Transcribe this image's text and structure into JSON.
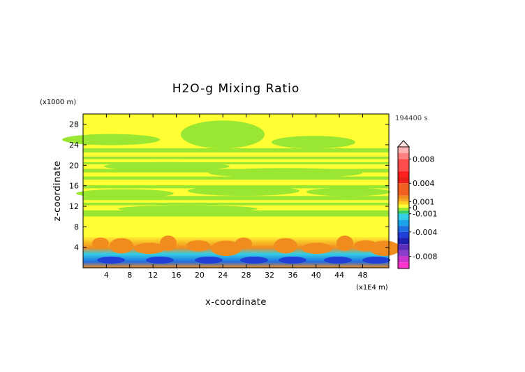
{
  "chart_data": {
    "type": "heatmap",
    "title": "H2O-g Mixing Ratio",
    "xlabel": "x-coordinate",
    "ylabel": "z-coordinate",
    "x_unit": "(x1E4 m)",
    "y_unit": "(x1000 m)",
    "time_label": "194400 s",
    "xlim": [
      0,
      52.5
    ],
    "ylim": [
      0,
      30
    ],
    "x_ticks": [
      "4",
      "8",
      "12",
      "16",
      "20",
      "24",
      "28",
      "32",
      "36",
      "40",
      "44",
      "48"
    ],
    "y_ticks": [
      "4",
      "8",
      "12",
      "16",
      "20",
      "24",
      "28"
    ],
    "colorbar": {
      "tick_labels": [
        "0.008",
        "0.004",
        "0.001",
        "0",
        "-0.001",
        "-0.004",
        "-0.008"
      ],
      "tick_values": [
        0.008,
        0.004,
        0.001,
        0,
        -0.001,
        -0.004,
        -0.008
      ],
      "range": [
        -0.01,
        0.01
      ]
    },
    "field_description": [
      {
        "z_range": [
          0,
          2
        ],
        "value": -0.003
      },
      {
        "z_range": [
          2,
          6
        ],
        "value": 0.002
      },
      {
        "z_range": [
          6,
          30
        ],
        "value": 0.0
      }
    ]
  }
}
